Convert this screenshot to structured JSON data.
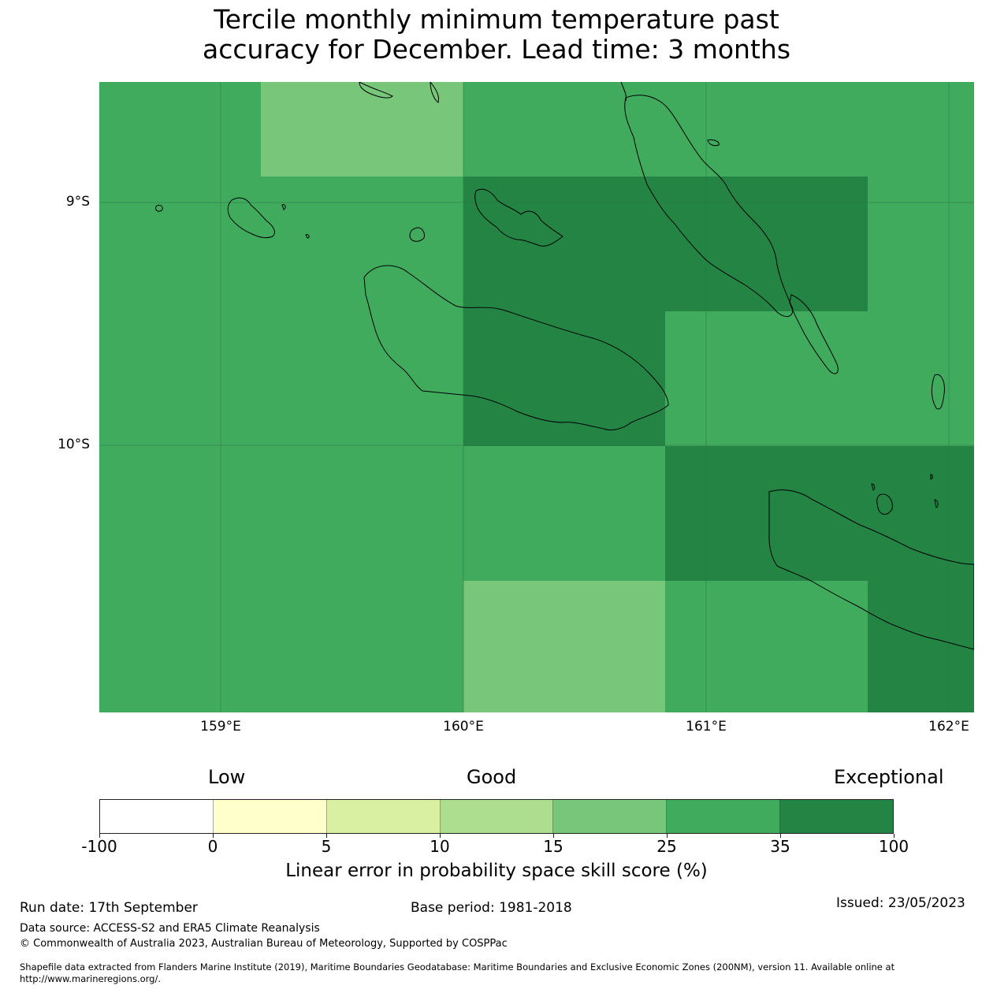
{
  "title": {
    "line1": "Tercile monthly minimum temperature past",
    "line2": "accuracy for December. Lead time: 3 months"
  },
  "map": {
    "ocean_color": "#41ab5d",
    "lat_labels": [
      "9°S",
      "10°S"
    ],
    "lon_labels": [
      "159°E",
      "160°E",
      "161°E",
      "162°E"
    ],
    "skill_cells": [
      {
        "category": "15-25",
        "color": "#78c679"
      },
      {
        "category": "35-100",
        "color": "#238443"
      },
      {
        "category": "15-25",
        "color": "#78c679"
      },
      {
        "category": "35-100",
        "color": "#238443"
      }
    ]
  },
  "colorbar": {
    "words": {
      "low": "Low",
      "good": "Good",
      "exceptional": "Exceptional"
    },
    "colors": [
      "#ffffff",
      "#ffffcc",
      "#d9f0a3",
      "#addd8e",
      "#78c679",
      "#41ab5d",
      "#238443"
    ],
    "ticks": [
      "-100",
      "0",
      "5",
      "10",
      "15",
      "25",
      "35",
      "100"
    ],
    "label": "Linear error in probability space skill score (%)"
  },
  "footer": {
    "run_date": "Run date: 17th September",
    "base_period": "Base period: 1981-2018",
    "issued": "Issued: 23/05/2023",
    "data_source": "Data source: ACCESS-S2 and ERA5 Climate Reanalysis",
    "copyright": "© Commonwealth of Australia 2023, Australian Bureau of Meteorology, Supported by COSPPac",
    "shapefile": "Shapefile data extracted from Flanders Marine Institute (2019), Maritime Boundaries Geodatabase: Maritime Boundaries and Exclusive Economic Zones (200NM), version 11. Available online at http://www.marineregions.org/."
  }
}
